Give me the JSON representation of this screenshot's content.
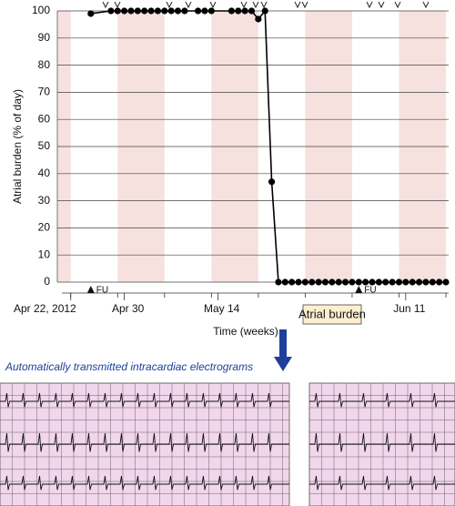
{
  "chart_data": {
    "type": "line",
    "y_label": "Atrial burden (% of day)",
    "x_label": "Time (weeks)",
    "box_label": "Atrial burden",
    "caption": "Automatically transmitted intracardiac electrograms",
    "x": [
      "2012-04-25",
      "2012-04-28",
      "2012-04-29",
      "2012-04-30",
      "2012-05-01",
      "2012-05-02",
      "2012-05-03",
      "2012-05-04",
      "2012-05-05",
      "2012-05-06",
      "2012-05-07",
      "2012-05-08",
      "2012-05-09",
      "2012-05-11",
      "2012-05-12",
      "2012-05-13",
      "2012-05-16",
      "2012-05-17",
      "2012-05-18",
      "2012-05-19",
      "2012-05-20",
      "2012-05-21",
      "2012-05-22",
      "2012-05-23",
      "2012-05-24",
      "2012-05-25",
      "2012-05-26",
      "2012-05-27",
      "2012-05-28",
      "2012-05-29",
      "2012-05-30",
      "2012-05-31",
      "2012-06-01",
      "2012-06-02",
      "2012-06-03",
      "2012-06-04",
      "2012-06-05",
      "2012-06-06",
      "2012-06-07",
      "2012-06-08",
      "2012-06-09",
      "2012-06-10",
      "2012-06-11",
      "2012-06-12",
      "2012-06-13",
      "2012-06-14",
      "2012-06-15",
      "2012-06-16",
      "2012-06-17"
    ],
    "values": [
      99,
      100,
      100,
      100,
      100,
      100,
      100,
      100,
      100,
      100,
      100,
      100,
      100,
      100,
      100,
      100,
      100,
      100,
      100,
      100,
      97,
      100,
      37,
      0,
      0,
      0,
      0,
      0,
      0,
      0,
      0,
      0,
      0,
      0,
      0,
      0,
      0,
      0,
      0,
      0,
      0,
      0,
      0,
      0,
      0,
      0,
      0,
      0,
      0
    ],
    "color": "#000000",
    "xlim": [
      "2012-04-20",
      "2012-06-17"
    ],
    "xticks": [
      {
        "value": "2012-04-22",
        "label": "Apr 22, 2012"
      },
      {
        "value": "2012-04-30",
        "label": "Apr 30"
      },
      {
        "value": "2012-05-14",
        "label": "May 14"
      },
      {
        "value": "2012-06-11",
        "label": "Jun 11"
      }
    ],
    "ylim": [
      0,
      100
    ],
    "yticks": [
      0,
      10,
      20,
      30,
      40,
      50,
      60,
      70,
      80,
      90,
      100
    ],
    "grid": true,
    "annotations": [
      {
        "x": "2012-04-25",
        "label": "FU"
      },
      {
        "x": "2012-06-04",
        "label": "FU"
      }
    ]
  }
}
